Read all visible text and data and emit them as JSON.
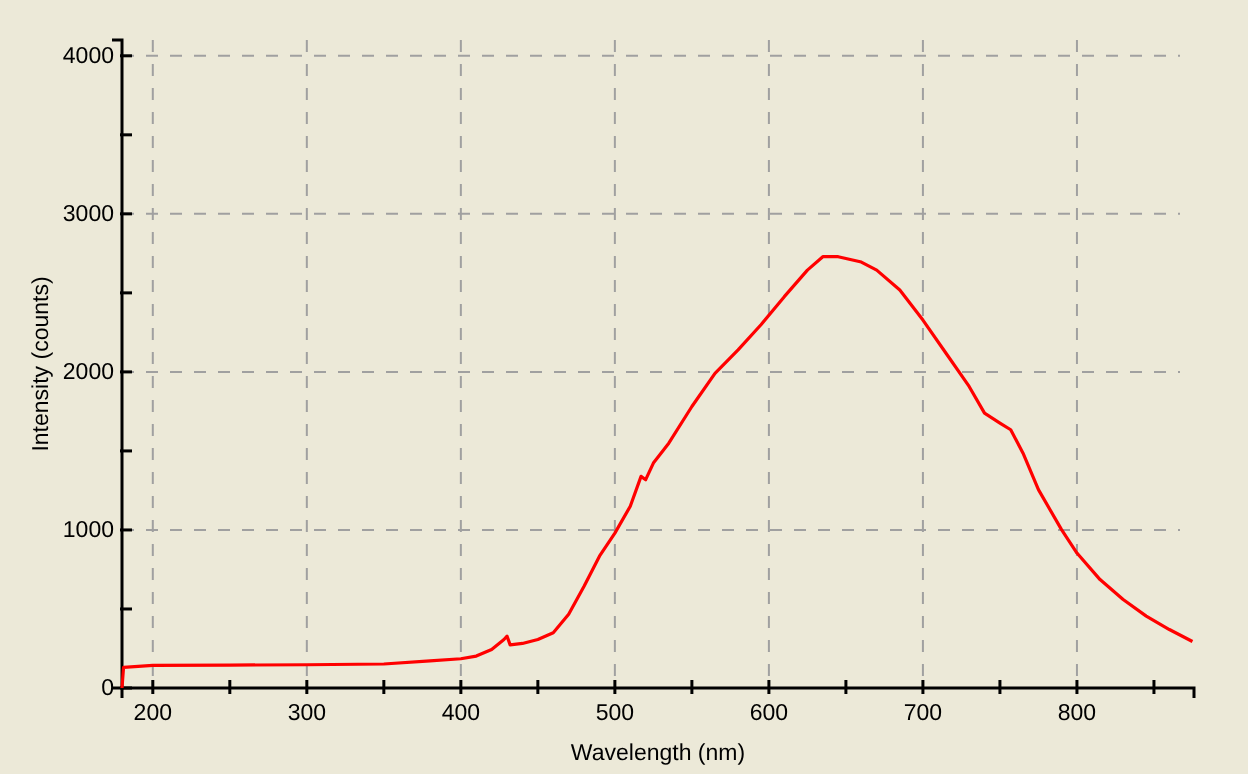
{
  "chart_data": {
    "type": "line",
    "xlabel": "Wavelength (nm)",
    "ylabel": "Intensity (counts)",
    "x": [
      180,
      181,
      200,
      250,
      300,
      350,
      380,
      400,
      410,
      420,
      428,
      430,
      432,
      440,
      450,
      460,
      470,
      480,
      490,
      500,
      510,
      517,
      520,
      525,
      535,
      550,
      565,
      580,
      595,
      610,
      625,
      635,
      645,
      660,
      670,
      685,
      700,
      715,
      730,
      740,
      750,
      757,
      765,
      775,
      790,
      800,
      815,
      830,
      845,
      860,
      875
    ],
    "series": [
      {
        "color": "#ff0000",
        "values": [
          0,
          130,
          143,
          145,
          147,
          152,
          172,
          185,
          202,
          244,
          307,
          328,
          273,
          282,
          307,
          349,
          467,
          644,
          834,
          980,
          1150,
          1339,
          1318,
          1423,
          1549,
          1781,
          1991,
          2139,
          2300,
          2476,
          2644,
          2729,
          2729,
          2695,
          2644,
          2518,
          2328,
          2118,
          1908,
          1739,
          1676,
          1634,
          1486,
          1255,
          1002,
          854,
          686,
          560,
          455,
          370,
          294
        ]
      }
    ],
    "xlim": [
      180,
      876
    ],
    "ylim": [
      0,
      4100
    ],
    "xticks": [
      200,
      {
        "value": 250,
        "label": null
      },
      300,
      {
        "value": 350,
        "label": null
      },
      400,
      {
        "value": 450,
        "label": null
      },
      500,
      {
        "value": 550,
        "label": null
      },
      600,
      {
        "value": 650,
        "label": null
      },
      700,
      {
        "value": 750,
        "label": null
      },
      800,
      {
        "value": 850,
        "label": null
      }
    ],
    "yticks": [
      0,
      {
        "value": 500,
        "label": null
      },
      1000,
      {
        "value": 1500,
        "label": null
      },
      2000,
      {
        "value": 2500,
        "label": null
      },
      3000,
      {
        "value": 3500,
        "label": null
      },
      4000
    ],
    "grid": true,
    "marker": "none",
    "line_style": "solid"
  }
}
